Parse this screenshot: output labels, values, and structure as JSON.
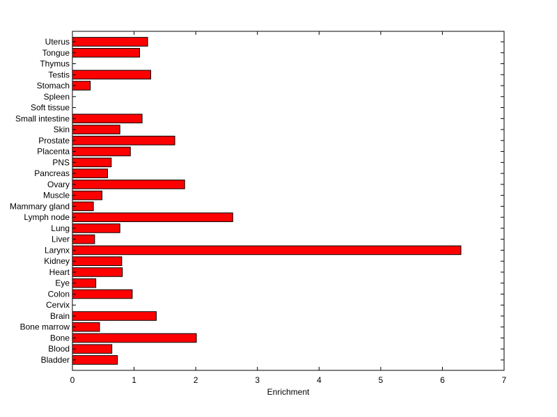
{
  "chart_data": {
    "type": "bar",
    "orientation": "horizontal",
    "title": "",
    "xlabel": "Enrichment",
    "ylabel": "",
    "xlim": [
      0,
      7
    ],
    "xticks": [
      0,
      1,
      2,
      3,
      4,
      5,
      6,
      7
    ],
    "grid": false,
    "bar_color": "#ff0000",
    "bar_edge_color": "#000000",
    "categories": [
      "Bladder",
      "Blood",
      "Bone",
      "Bone marrow",
      "Brain",
      "Cervix",
      "Colon",
      "Eye",
      "Heart",
      "Kidney",
      "Larynx",
      "Liver",
      "Lung",
      "Lymph node",
      "Mammary gland",
      "Muscle",
      "Ovary",
      "Pancreas",
      "PNS",
      "Placenta",
      "Prostate",
      "Skin",
      "Small intestine",
      "Soft tissue",
      "Spleen",
      "Stomach",
      "Testis",
      "Thymus",
      "Tongue",
      "Uterus"
    ],
    "values": [
      0.73,
      0.64,
      2.01,
      0.44,
      1.36,
      0.0,
      0.97,
      0.38,
      0.81,
      0.8,
      6.3,
      0.36,
      0.77,
      2.6,
      0.34,
      0.48,
      1.82,
      0.57,
      0.63,
      0.94,
      1.66,
      0.77,
      1.13,
      0.0,
      0.0,
      0.29,
      1.27,
      0.0,
      1.09,
      1.22
    ]
  }
}
